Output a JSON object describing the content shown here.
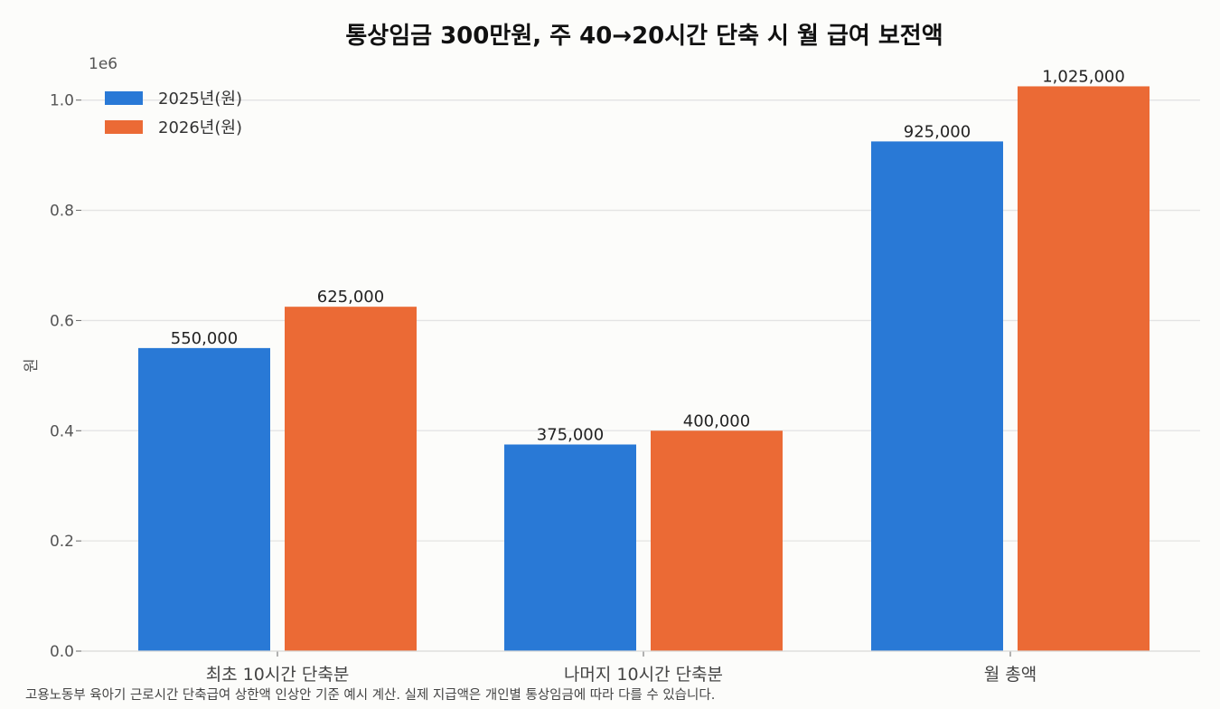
{
  "chart_data": {
    "type": "bar",
    "title": "통상임금 300만원, 주 40→20시간 단축 시 월 급여 보전액",
    "xlabel": "",
    "ylabel": "원",
    "y_offset_label": "1e6",
    "ylim": [
      0,
      1075000
    ],
    "yticks": [
      0,
      200000,
      400000,
      600000,
      800000,
      1000000
    ],
    "ytick_labels": [
      "0.0",
      "0.2",
      "0.4",
      "0.6",
      "0.8",
      "1.0"
    ],
    "grid": true,
    "legend_position": "top-left",
    "categories": [
      "최초 10시간 단축분",
      "나머지 10시간 단축분",
      "월 총액"
    ],
    "series": [
      {
        "name": "2025년(원)",
        "color": "#2979d6",
        "values": [
          550000,
          375000,
          925000
        ],
        "labels": [
          "550,000",
          "375,000",
          "925,000"
        ]
      },
      {
        "name": "2026년(원)",
        "color": "#eb6a35",
        "values": [
          625000,
          400000,
          1025000
        ],
        "labels": [
          "625,000",
          "400,000",
          "1,025,000"
        ]
      }
    ],
    "footnote": "고용노동부 육아기 근로시간 단축급여 상한액 인상안 기준 예시 계산. 실제 지급액은 개인별 통상임금에 따라 다를 수 있습니다."
  }
}
